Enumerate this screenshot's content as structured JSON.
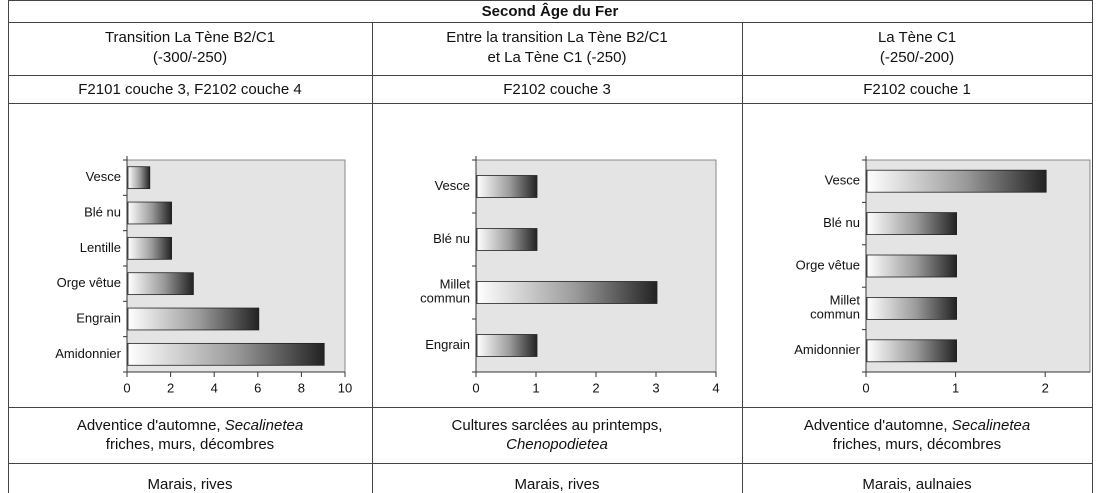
{
  "table": {
    "title": "Second Âge du Fer",
    "periods": [
      [
        "Transition La Tène B2/C1",
        "(-300/-250)"
      ],
      [
        "Entre la transition La Tène B2/C1",
        "et La Tène C1 (-250)"
      ],
      [
        "La Tène C1",
        "(-250/-200)"
      ]
    ],
    "layers": [
      "F2101 couche 3, F2102 couche 4",
      "F2102 couche 3",
      "F2102 couche 1"
    ],
    "ecology": [
      [
        [
          {
            "text": "Adventice d'automne, "
          },
          {
            "text": "Secalinetea",
            "italic": true
          }
        ],
        [
          {
            "text": "friches, murs, décombres"
          }
        ]
      ],
      [
        [
          {
            "text": "Cultures sarclées au printemps,"
          }
        ],
        [
          {
            "text": "Chenopodietea",
            "italic": true
          }
        ]
      ],
      [
        [
          {
            "text": "Adventice d'automne, "
          },
          {
            "text": "Secalinetea",
            "italic": true
          }
        ],
        [
          {
            "text": "friches, murs, décombres"
          }
        ]
      ]
    ],
    "habitat": [
      "Marais, rives",
      "Marais, rives",
      "Marais, aulnaies"
    ]
  },
  "chart_data": [
    {
      "type": "bar",
      "orientation": "horizontal",
      "categories": [
        "Vesce",
        "Blé nu",
        "Lentille",
        "Orge vêtue",
        "Engrain",
        "Amidonnier"
      ],
      "values": [
        1,
        2,
        2,
        3,
        6,
        9
      ],
      "xlim": [
        0,
        10
      ],
      "xticks": [
        0,
        2,
        4,
        6,
        8,
        10
      ]
    },
    {
      "type": "bar",
      "orientation": "horizontal",
      "categories": [
        "Vesce",
        "Blé nu",
        "Millet commun",
        "Engrain"
      ],
      "values": [
        1,
        1,
        3,
        1
      ],
      "xlim": [
        0,
        4
      ],
      "xticks": [
        0,
        1,
        2,
        3,
        4
      ]
    },
    {
      "type": "bar",
      "orientation": "horizontal",
      "categories": [
        "Vesce",
        "Blé nu",
        "Orge vêtue",
        "Millet commun",
        "Amidonnier"
      ],
      "values": [
        2,
        1,
        1,
        1,
        1
      ],
      "xlim": [
        0,
        2.5
      ],
      "xticks": [
        0,
        1,
        2
      ]
    }
  ]
}
